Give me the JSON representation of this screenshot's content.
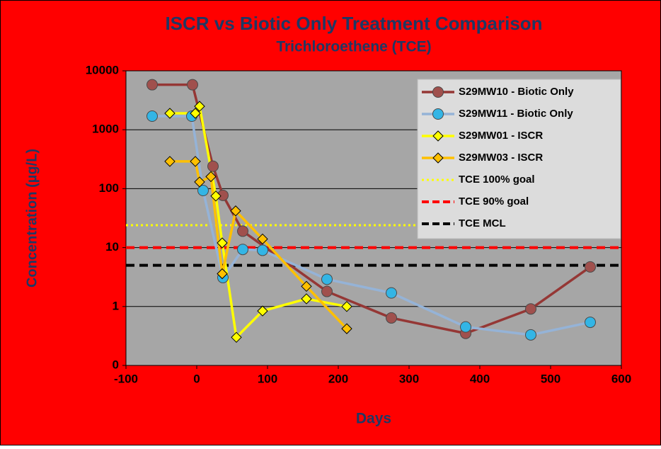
{
  "chart_data": {
    "type": "line",
    "title": "ISCR vs Biotic Only Treatment Comparison",
    "subtitle": "Trichloroethene (TCE)",
    "x_label": "Days",
    "y_label": "Concentration (µg/L)",
    "xlim": [
      -100,
      600
    ],
    "xticks": [
      -100,
      0,
      100,
      200,
      300,
      400,
      500,
      600
    ],
    "ylim": [
      0.1,
      10000
    ],
    "yticks": [
      {
        "value": 0.1,
        "label": "0"
      },
      1,
      10,
      100,
      1000,
      10000
    ],
    "ylog": true,
    "grid": true,
    "legend": "upper right",
    "series": [
      {
        "name": "S29MW10 - Biotic Only",
        "color": "#953735",
        "marker": "circle",
        "marker_color": "#a0504d",
        "x": [
          -63,
          -6,
          23,
          37,
          65,
          184,
          275,
          380,
          472,
          556
        ],
        "values": [
          5800,
          5800,
          240,
          77,
          19,
          1.8,
          0.64,
          0.35,
          0.91,
          4.7
        ]
      },
      {
        "name": "S29MW11 - Biotic Only",
        "color": "#95b3d7",
        "marker": "circle",
        "marker_color": "#33b5e5",
        "x": [
          -63,
          -7,
          9,
          37,
          65,
          93,
          184,
          275,
          380,
          472,
          556
        ],
        "values": [
          1700,
          1700,
          93,
          3.1,
          9.3,
          9,
          2.9,
          1.7,
          0.45,
          0.33,
          0.54
        ]
      },
      {
        "name": "S29MW01 - ISCR",
        "color": "#ffff00",
        "marker": "diamond",
        "marker_color": "#ffff00",
        "x": [
          -38,
          -2,
          4,
          27,
          36,
          56,
          93,
          155,
          212
        ],
        "values": [
          1900,
          1900,
          2500,
          75,
          12,
          0.3,
          0.84,
          1.35,
          1.0
        ]
      },
      {
        "name": "S29MW03 - ISCR",
        "color": "#ffc000",
        "marker": "diamond",
        "marker_color": "#ffc000",
        "x": [
          -38,
          -2,
          4,
          20,
          36,
          55,
          93,
          155,
          212
        ],
        "values": [
          290,
          290,
          130,
          160,
          3.6,
          42,
          14,
          2.2,
          0.42
        ]
      }
    ],
    "reference_lines": [
      {
        "name": "TCE 100% goal",
        "color": "#ffff00",
        "style": "dotted",
        "value": 24
      },
      {
        "name": "TCE 90% goal",
        "color": "#ff0000",
        "style": "dashed",
        "value": 10
      },
      {
        "name": "TCE MCL",
        "color": "#000000",
        "style": "dashed",
        "value": 5
      }
    ]
  }
}
